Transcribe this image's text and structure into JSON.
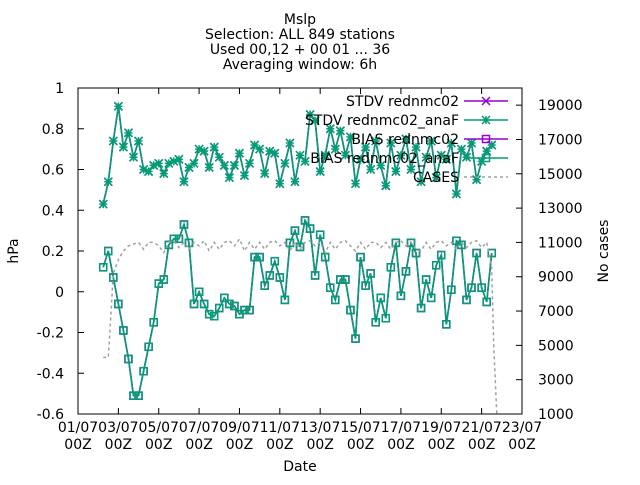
{
  "chart_data": {
    "type": "line",
    "title_lines": [
      "Mslp",
      "Selection: ALL    849 stations",
      "Used 00,12 + 00 01 ... 36",
      "Averaging window:  6h"
    ],
    "xlabel": "Date",
    "ylabel": "hPa",
    "y2label": "No cases",
    "xlim": [
      0,
      22
    ],
    "ylim": [
      -0.6,
      1.0
    ],
    "y2lim": [
      1000,
      20000
    ],
    "x_ticks": [
      {
        "x": 0,
        "line1": "01/07",
        "line2": "00Z"
      },
      {
        "x": 2,
        "line1": "03/07",
        "line2": "00Z"
      },
      {
        "x": 4,
        "line1": "05/07",
        "line2": "00Z"
      },
      {
        "x": 6,
        "line1": "07/07",
        "line2": "00Z"
      },
      {
        "x": 8,
        "line1": "09/07",
        "line2": "00Z"
      },
      {
        "x": 10,
        "line1": "11/07",
        "line2": "00Z"
      },
      {
        "x": 12,
        "line1": "13/07",
        "line2": "00Z"
      },
      {
        "x": 14,
        "line1": "15/07",
        "line2": "00Z"
      },
      {
        "x": 16,
        "line1": "17/07",
        "line2": "00Z"
      },
      {
        "x": 18,
        "line1": "19/07",
        "line2": "00Z"
      },
      {
        "x": 20,
        "line1": "21/07",
        "line2": "00Z"
      },
      {
        "x": 22,
        "line1": "23/07",
        "line2": "00Z"
      }
    ],
    "y_ticks": [
      {
        "v": 1,
        "label": "1"
      },
      {
        "v": 0.8,
        "label": "0.8"
      },
      {
        "v": 0.6,
        "label": "0.6"
      },
      {
        "v": 0.4,
        "label": "0.4"
      },
      {
        "v": 0.2,
        "label": "0.2"
      },
      {
        "v": 0,
        "label": "0"
      },
      {
        "v": -0.2,
        "label": "-0.2"
      },
      {
        "v": -0.4,
        "label": "-0.4"
      },
      {
        "v": -0.6,
        "label": "-0.6"
      }
    ],
    "y2_ticks": [
      {
        "v": 19000,
        "label": "19000"
      },
      {
        "v": 17000,
        "label": "17000"
      },
      {
        "v": 15000,
        "label": "15000"
      },
      {
        "v": 13000,
        "label": "13000"
      },
      {
        "v": 11000,
        "label": "11000"
      },
      {
        "v": 9000,
        "label": "9000"
      },
      {
        "v": 7000,
        "label": "7000"
      },
      {
        "v": 5000,
        "label": "5000"
      },
      {
        "v": 3000,
        "label": "3000"
      },
      {
        "v": 1000,
        "label": "1000"
      }
    ],
    "legend_position": "top-right",
    "series": [
      {
        "name": "STDV rednmc02",
        "color": "#9400d3",
        "marker": "cross",
        "axis": "y",
        "x": [
          1.25,
          1.5,
          1.75,
          2.0,
          2.25,
          2.5,
          2.75,
          3.0,
          3.25,
          3.5,
          3.75,
          4.0,
          4.25,
          4.5,
          4.75,
          5.0,
          5.25,
          5.5,
          5.75,
          6.0,
          6.25,
          6.5,
          6.75,
          7.0,
          7.25,
          7.5,
          7.75,
          8.0,
          8.25,
          8.5,
          8.75,
          9.0,
          9.25,
          9.5,
          9.75,
          10.0,
          10.25,
          10.5,
          10.75,
          11.0,
          11.25,
          11.5,
          11.75,
          12.0,
          12.25,
          12.5,
          12.75,
          13.0,
          13.25,
          13.5,
          13.75,
          14.0,
          14.25,
          14.5,
          14.75,
          15.0,
          15.25,
          15.5,
          15.75,
          16.0,
          16.25,
          16.5,
          16.75,
          17.0,
          17.25,
          17.5,
          17.75,
          18.0,
          18.25,
          18.5,
          18.75,
          19.0,
          19.25,
          19.5,
          19.75,
          20.0,
          20.25,
          20.5
        ],
        "values": [
          0.43,
          0.54,
          0.74,
          0.91,
          0.71,
          0.78,
          0.66,
          0.74,
          0.6,
          0.59,
          0.62,
          0.63,
          0.58,
          0.63,
          0.64,
          0.65,
          0.54,
          0.61,
          0.63,
          0.7,
          0.69,
          0.61,
          0.71,
          0.66,
          0.62,
          0.56,
          0.62,
          0.68,
          0.57,
          0.63,
          0.72,
          0.7,
          0.58,
          0.69,
          0.68,
          0.53,
          0.63,
          0.73,
          0.54,
          0.67,
          0.64,
          0.87,
          0.84,
          0.59,
          0.67,
          0.8,
          0.7,
          0.79,
          0.67,
          0.76,
          0.53,
          0.65,
          0.71,
          0.6,
          0.74,
          0.62,
          0.52,
          0.73,
          0.59,
          0.67,
          0.75,
          0.6,
          0.71,
          0.54,
          0.66,
          0.74,
          0.56,
          0.67,
          0.65,
          0.73,
          0.48,
          0.7,
          0.66,
          0.73,
          0.55,
          0.64,
          0.69,
          0.72
        ]
      },
      {
        "name": "STDV rednmc02_anaF",
        "color": "#009e73",
        "marker": "star",
        "axis": "y",
        "x": [
          1.25,
          1.5,
          1.75,
          2.0,
          2.25,
          2.5,
          2.75,
          3.0,
          3.25,
          3.5,
          3.75,
          4.0,
          4.25,
          4.5,
          4.75,
          5.0,
          5.25,
          5.5,
          5.75,
          6.0,
          6.25,
          6.5,
          6.75,
          7.0,
          7.25,
          7.5,
          7.75,
          8.0,
          8.25,
          8.5,
          8.75,
          9.0,
          9.25,
          9.5,
          9.75,
          10.0,
          10.25,
          10.5,
          10.75,
          11.0,
          11.25,
          11.5,
          11.75,
          12.0,
          12.25,
          12.5,
          12.75,
          13.0,
          13.25,
          13.5,
          13.75,
          14.0,
          14.25,
          14.5,
          14.75,
          15.0,
          15.25,
          15.5,
          15.75,
          16.0,
          16.25,
          16.5,
          16.75,
          17.0,
          17.25,
          17.5,
          17.75,
          18.0,
          18.25,
          18.5,
          18.75,
          19.0,
          19.25,
          19.5,
          19.75,
          20.0,
          20.25,
          20.5
        ],
        "values": [
          0.43,
          0.54,
          0.74,
          0.91,
          0.71,
          0.78,
          0.66,
          0.74,
          0.6,
          0.59,
          0.62,
          0.63,
          0.58,
          0.63,
          0.64,
          0.65,
          0.54,
          0.61,
          0.63,
          0.7,
          0.69,
          0.61,
          0.71,
          0.66,
          0.62,
          0.56,
          0.62,
          0.68,
          0.57,
          0.63,
          0.72,
          0.7,
          0.58,
          0.69,
          0.68,
          0.53,
          0.63,
          0.73,
          0.54,
          0.67,
          0.64,
          0.87,
          0.84,
          0.59,
          0.67,
          0.8,
          0.7,
          0.79,
          0.67,
          0.76,
          0.53,
          0.65,
          0.71,
          0.6,
          0.74,
          0.62,
          0.52,
          0.73,
          0.59,
          0.67,
          0.75,
          0.6,
          0.71,
          0.54,
          0.66,
          0.74,
          0.56,
          0.67,
          0.65,
          0.73,
          0.48,
          0.7,
          0.66,
          0.73,
          0.55,
          0.64,
          0.69,
          0.72
        ]
      },
      {
        "name": "BIAS rednmc02",
        "color": "#9400d3",
        "marker": "square",
        "axis": "y",
        "x": [
          1.25,
          1.5,
          1.75,
          2.0,
          2.25,
          2.5,
          2.75,
          3.0,
          3.25,
          3.5,
          3.75,
          4.0,
          4.25,
          4.5,
          4.75,
          5.0,
          5.25,
          5.5,
          5.75,
          6.0,
          6.25,
          6.5,
          6.75,
          7.0,
          7.25,
          7.5,
          7.75,
          8.0,
          8.25,
          8.5,
          8.75,
          9.0,
          9.25,
          9.5,
          9.75,
          10.0,
          10.25,
          10.5,
          10.75,
          11.0,
          11.25,
          11.5,
          11.75,
          12.0,
          12.25,
          12.5,
          12.75,
          13.0,
          13.25,
          13.5,
          13.75,
          14.0,
          14.25,
          14.5,
          14.75,
          15.0,
          15.25,
          15.5,
          15.75,
          16.0,
          16.25,
          16.5,
          16.75,
          17.0,
          17.25,
          17.5,
          17.75,
          18.0,
          18.25,
          18.5,
          18.75,
          19.0,
          19.25,
          19.5,
          19.75,
          20.0,
          20.25,
          20.5
        ],
        "values": [
          0.12,
          0.2,
          0.07,
          -0.06,
          -0.19,
          -0.33,
          -0.51,
          -0.51,
          -0.39,
          -0.27,
          -0.15,
          0.04,
          0.06,
          0.23,
          0.26,
          0.26,
          0.33,
          0.24,
          -0.06,
          0.0,
          -0.06,
          -0.11,
          -0.12,
          -0.08,
          -0.03,
          -0.06,
          -0.07,
          -0.11,
          -0.09,
          -0.09,
          0.17,
          0.17,
          0.03,
          0.08,
          0.15,
          0.07,
          -0.04,
          0.24,
          0.3,
          0.22,
          0.35,
          0.31,
          0.08,
          0.28,
          0.17,
          0.02,
          -0.04,
          0.06,
          0.06,
          -0.09,
          -0.23,
          0.17,
          0.03,
          0.09,
          -0.15,
          -0.03,
          -0.13,
          0.12,
          0.24,
          -0.02,
          0.1,
          0.24,
          0.19,
          -0.08,
          0.06,
          -0.03,
          0.13,
          0.18,
          -0.16,
          0.01,
          0.25,
          0.23,
          -0.04,
          0.02,
          0.19,
          0.02,
          -0.05,
          0.19
        ]
      },
      {
        "name": "BIAS rednmc02_anaF",
        "color": "#009e73",
        "marker": "square",
        "axis": "y",
        "x": [
          1.25,
          1.5,
          1.75,
          2.0,
          2.25,
          2.5,
          2.75,
          3.0,
          3.25,
          3.5,
          3.75,
          4.0,
          4.25,
          4.5,
          4.75,
          5.0,
          5.25,
          5.5,
          5.75,
          6.0,
          6.25,
          6.5,
          6.75,
          7.0,
          7.25,
          7.5,
          7.75,
          8.0,
          8.25,
          8.5,
          8.75,
          9.0,
          9.25,
          9.5,
          9.75,
          10.0,
          10.25,
          10.5,
          10.75,
          11.0,
          11.25,
          11.5,
          11.75,
          12.0,
          12.25,
          12.5,
          12.75,
          13.0,
          13.25,
          13.5,
          13.75,
          14.0,
          14.25,
          14.5,
          14.75,
          15.0,
          15.25,
          15.5,
          15.75,
          16.0,
          16.25,
          16.5,
          16.75,
          17.0,
          17.25,
          17.5,
          17.75,
          18.0,
          18.25,
          18.5,
          18.75,
          19.0,
          19.25,
          19.5,
          19.75,
          20.0,
          20.25,
          20.5
        ],
        "values": [
          0.12,
          0.2,
          0.07,
          -0.06,
          -0.19,
          -0.33,
          -0.51,
          -0.51,
          -0.39,
          -0.27,
          -0.15,
          0.04,
          0.06,
          0.23,
          0.26,
          0.26,
          0.33,
          0.24,
          -0.06,
          0.0,
          -0.06,
          -0.11,
          -0.12,
          -0.08,
          -0.03,
          -0.06,
          -0.07,
          -0.11,
          -0.09,
          -0.09,
          0.17,
          0.17,
          0.03,
          0.08,
          0.15,
          0.07,
          -0.04,
          0.24,
          0.3,
          0.22,
          0.35,
          0.31,
          0.08,
          0.28,
          0.17,
          0.02,
          -0.04,
          0.06,
          0.06,
          -0.09,
          -0.23,
          0.17,
          0.03,
          0.09,
          -0.15,
          -0.03,
          -0.13,
          0.12,
          0.24,
          -0.02,
          0.1,
          0.24,
          0.19,
          -0.08,
          0.06,
          -0.03,
          0.13,
          0.18,
          -0.16,
          0.01,
          0.25,
          0.23,
          -0.04,
          0.02,
          0.19,
          0.02,
          -0.05,
          0.19
        ]
      },
      {
        "name": "CASES",
        "color": "#a0a0a0",
        "marker": "none",
        "line_style": "dashed",
        "axis": "y2",
        "x": [
          1.25,
          1.5,
          1.6,
          1.75,
          2.0,
          2.25,
          2.5,
          2.75,
          3.0,
          3.25,
          3.5,
          3.75,
          4.0,
          4.25,
          4.5,
          4.75,
          5.0,
          5.25,
          5.5,
          5.75,
          6.0,
          6.25,
          6.5,
          6.75,
          7.0,
          7.25,
          7.5,
          7.75,
          8.0,
          8.25,
          8.5,
          8.75,
          9.0,
          9.25,
          9.5,
          9.75,
          10.0,
          10.25,
          10.5,
          10.75,
          11.0,
          11.25,
          11.5,
          11.75,
          12.0,
          12.25,
          12.5,
          12.75,
          13.0,
          13.25,
          13.5,
          13.75,
          14.0,
          14.25,
          14.5,
          14.75,
          15.0,
          15.25,
          15.5,
          15.75,
          16.0,
          16.25,
          16.5,
          16.75,
          17.0,
          17.25,
          17.5,
          17.75,
          18.0,
          18.25,
          18.5,
          18.75,
          19.0,
          19.25,
          19.5,
          19.75,
          20.0,
          20.25,
          20.5,
          20.6,
          20.75
        ],
        "values": [
          4300,
          4300,
          6200,
          9200,
          10000,
          10500,
          10800,
          10900,
          11000,
          10600,
          11000,
          11000,
          10800,
          10400,
          11000,
          11100,
          10700,
          11000,
          10600,
          11000,
          10800,
          11100,
          10500,
          11000,
          10600,
          11000,
          11100,
          10800,
          11200,
          10500,
          11000,
          10600,
          11000,
          10600,
          11000,
          11100,
          10800,
          11000,
          10500,
          11000,
          10600,
          11000,
          11100,
          10800,
          11000,
          10400,
          11000,
          10600,
          11000,
          11100,
          10800,
          10500,
          11000,
          10600,
          11000,
          11000,
          10700,
          11000,
          10600,
          11000,
          11100,
          10800,
          11000,
          10600,
          10500,
          11000,
          10600,
          11000,
          11100,
          10800,
          11000,
          10600,
          11000,
          10700,
          11000,
          11100,
          10700,
          11000,
          9500,
          5000,
          1000
        ]
      }
    ]
  }
}
